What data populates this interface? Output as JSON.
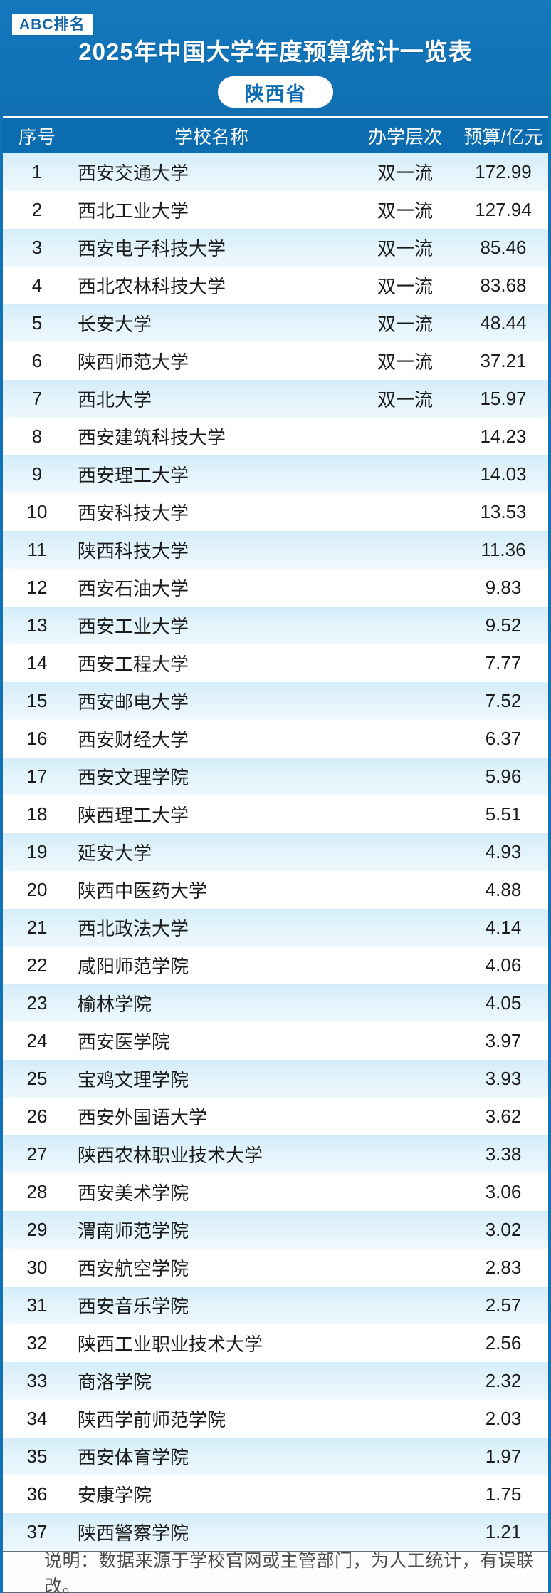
{
  "page": {
    "badge": "ABC排名",
    "title": "2025年中国大学年度预算统计一览表",
    "province_pill": "陕西省"
  },
  "colors": {
    "header_blue": "#1173b6",
    "colheader_blue": "#0c6cb0",
    "stripe_cyan": "#ddf0fa",
    "badge_text_blue": "#1566a9",
    "footer_text_gray": "#4d4d4d"
  },
  "table": {
    "columns": {
      "no": "序号",
      "name": "学校名称",
      "level": "办学层次",
      "budget": "预算/亿元"
    },
    "rows": [
      {
        "no": "1",
        "name": "西安交通大学",
        "level": "双一流",
        "budget": "172.99"
      },
      {
        "no": "2",
        "name": "西北工业大学",
        "level": "双一流",
        "budget": "127.94"
      },
      {
        "no": "3",
        "name": "西安电子科技大学",
        "level": "双一流",
        "budget": "85.46"
      },
      {
        "no": "4",
        "name": "西北农林科技大学",
        "level": "双一流",
        "budget": "83.68"
      },
      {
        "no": "5",
        "name": "长安大学",
        "level": "双一流",
        "budget": "48.44"
      },
      {
        "no": "6",
        "name": "陕西师范大学",
        "level": "双一流",
        "budget": "37.21"
      },
      {
        "no": "7",
        "name": "西北大学",
        "level": "双一流",
        "budget": "15.97"
      },
      {
        "no": "8",
        "name": "西安建筑科技大学",
        "level": "",
        "budget": "14.23"
      },
      {
        "no": "9",
        "name": "西安理工大学",
        "level": "",
        "budget": "14.03"
      },
      {
        "no": "10",
        "name": "西安科技大学",
        "level": "",
        "budget": "13.53"
      },
      {
        "no": "11",
        "name": "陕西科技大学",
        "level": "",
        "budget": "11.36"
      },
      {
        "no": "12",
        "name": "西安石油大学",
        "level": "",
        "budget": "9.83"
      },
      {
        "no": "13",
        "name": "西安工业大学",
        "level": "",
        "budget": "9.52"
      },
      {
        "no": "14",
        "name": "西安工程大学",
        "level": "",
        "budget": "7.77"
      },
      {
        "no": "15",
        "name": "西安邮电大学",
        "level": "",
        "budget": "7.52"
      },
      {
        "no": "16",
        "name": "西安财经大学",
        "level": "",
        "budget": "6.37"
      },
      {
        "no": "17",
        "name": "西安文理学院",
        "level": "",
        "budget": "5.96"
      },
      {
        "no": "18",
        "name": "陕西理工大学",
        "level": "",
        "budget": "5.51"
      },
      {
        "no": "19",
        "name": "延安大学",
        "level": "",
        "budget": "4.93"
      },
      {
        "no": "20",
        "name": "陕西中医药大学",
        "level": "",
        "budget": "4.88"
      },
      {
        "no": "21",
        "name": "西北政法大学",
        "level": "",
        "budget": "4.14"
      },
      {
        "no": "22",
        "name": "咸阳师范学院",
        "level": "",
        "budget": "4.06"
      },
      {
        "no": "23",
        "name": "榆林学院",
        "level": "",
        "budget": "4.05"
      },
      {
        "no": "24",
        "name": "西安医学院",
        "level": "",
        "budget": "3.97"
      },
      {
        "no": "25",
        "name": "宝鸡文理学院",
        "level": "",
        "budget": "3.93"
      },
      {
        "no": "26",
        "name": "西安外国语大学",
        "level": "",
        "budget": "3.62"
      },
      {
        "no": "27",
        "name": "陕西农林职业技术大学",
        "level": "",
        "budget": "3.38"
      },
      {
        "no": "28",
        "name": "西安美术学院",
        "level": "",
        "budget": "3.06"
      },
      {
        "no": "29",
        "name": "渭南师范学院",
        "level": "",
        "budget": "3.02"
      },
      {
        "no": "30",
        "name": "西安航空学院",
        "level": "",
        "budget": "2.83"
      },
      {
        "no": "31",
        "name": "西安音乐学院",
        "level": "",
        "budget": "2.57"
      },
      {
        "no": "32",
        "name": "陕西工业职业技术大学",
        "level": "",
        "budget": "2.56"
      },
      {
        "no": "33",
        "name": "商洛学院",
        "level": "",
        "budget": "2.32"
      },
      {
        "no": "34",
        "name": "陕西学前师范学院",
        "level": "",
        "budget": "2.03"
      },
      {
        "no": "35",
        "name": "西安体育学院",
        "level": "",
        "budget": "1.97"
      },
      {
        "no": "36",
        "name": "安康学院",
        "level": "",
        "budget": "1.75"
      },
      {
        "no": "37",
        "name": "陕西警察学院",
        "level": "",
        "budget": "1.21"
      }
    ]
  },
  "footer": {
    "note": "说明：数据来源于学校官网或主管部门，为人工统计，有误联改。"
  }
}
